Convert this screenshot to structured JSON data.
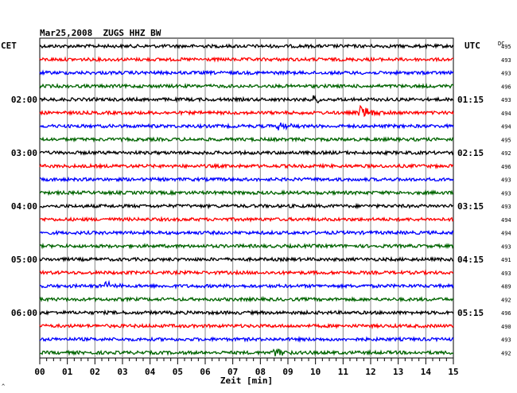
{
  "header": {
    "title": "Mar25,2008  ZUGS HHZ BW",
    "left_tz": "CET",
    "right_tz": "UTC",
    "dc_label": "DC"
  },
  "left_time_labels": [
    {
      "row": 4,
      "text": "02:00"
    },
    {
      "row": 8,
      "text": "03:00"
    },
    {
      "row": 12,
      "text": "04:00"
    },
    {
      "row": 16,
      "text": "05:00"
    },
    {
      "row": 20,
      "text": "06:00"
    }
  ],
  "right_time_labels": [
    {
      "row": 4,
      "text": "01:15"
    },
    {
      "row": 8,
      "text": "02:15"
    },
    {
      "row": 12,
      "text": "03:15"
    },
    {
      "row": 16,
      "text": "04:15"
    },
    {
      "row": 20,
      "text": "05:15"
    }
  ],
  "dc_values": [
    "495",
    "493",
    "493",
    "496",
    "493",
    "494",
    "494",
    "495",
    "492",
    "496",
    "493",
    "493",
    "493",
    "494",
    "494",
    "493",
    "491",
    "493",
    "489",
    "492",
    "496",
    "490",
    "493",
    "492"
  ],
  "x_axis": {
    "ticks": [
      "00",
      "01",
      "02",
      "03",
      "04",
      "05",
      "06",
      "07",
      "08",
      "09",
      "10",
      "11",
      "12",
      "13",
      "14",
      "15"
    ],
    "label": "Zeit [min]",
    "range_min": [
      0,
      15
    ]
  },
  "trace_colors": [
    "#000000",
    "#ff0000",
    "#0000ff",
    "#006400"
  ],
  "events": [
    {
      "row": 4,
      "minute": 9.9,
      "amplitude": 3
    },
    {
      "row": 5,
      "minute": 11.6,
      "amplitude": 6
    },
    {
      "row": 6,
      "minute": 8.6,
      "amplitude": 3
    },
    {
      "row": 18,
      "minute": 2.3,
      "amplitude": 4
    },
    {
      "row": 23,
      "minute": 8.5,
      "amplitude": 4
    }
  ],
  "footer_mark": "^"
}
